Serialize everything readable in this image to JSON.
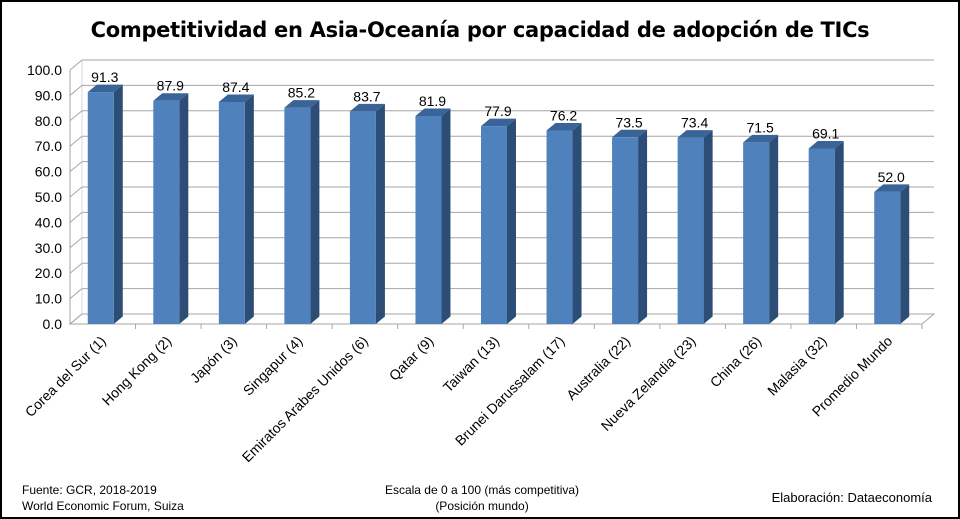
{
  "chart_data": {
    "type": "bar",
    "title": "Competitividad en Asia-Oceanía por capacidad de adopción de TICs",
    "categories": [
      "Corea del Sur (1)",
      "Hong Kong (2)",
      "Japón (3)",
      "Singapur (4)",
      "Emiratos Arabes Unidos (6)",
      "Qatar (9)",
      "Taiwan (13)",
      "Brunei Darussalam (17)",
      "Australia (22)",
      "Nueva Zelandia (23)",
      "China (26)",
      "Malasia (32)",
      "Promedio Mundo"
    ],
    "values": [
      91.3,
      87.9,
      87.4,
      85.2,
      83.7,
      81.9,
      77.9,
      76.2,
      73.5,
      73.4,
      71.5,
      69.1,
      52.0
    ],
    "value_labels": [
      "91.3",
      "87.9",
      "87.4",
      "85.2",
      "83.7",
      "81.9",
      "77.9",
      "76.2",
      "73.5",
      "73.4",
      "71.5",
      "69.1",
      "52.0"
    ],
    "ylim": [
      0,
      100
    ],
    "yticks": [
      "0.0",
      "10.0",
      "20.0",
      "30.0",
      "40.0",
      "50.0",
      "60.0",
      "70.0",
      "80.0",
      "90.0",
      "100.0"
    ],
    "xlabel": "",
    "ylabel": "",
    "grid": true,
    "legend": "none",
    "colors": {
      "bar_front": "#4F81BD",
      "bar_side": "#2C4D75",
      "bar_top": "#5A8AC6"
    }
  },
  "footer": {
    "source_line1": "Fuente:  GCR, 2018-2019",
    "source_line2": "World Economic Forum, Suiza",
    "scale_line1": "Escala de 0 a 100 (más competitiva)",
    "scale_line2": "(Posición mundo)",
    "credit": "Elaboración: Dataeconomía"
  }
}
